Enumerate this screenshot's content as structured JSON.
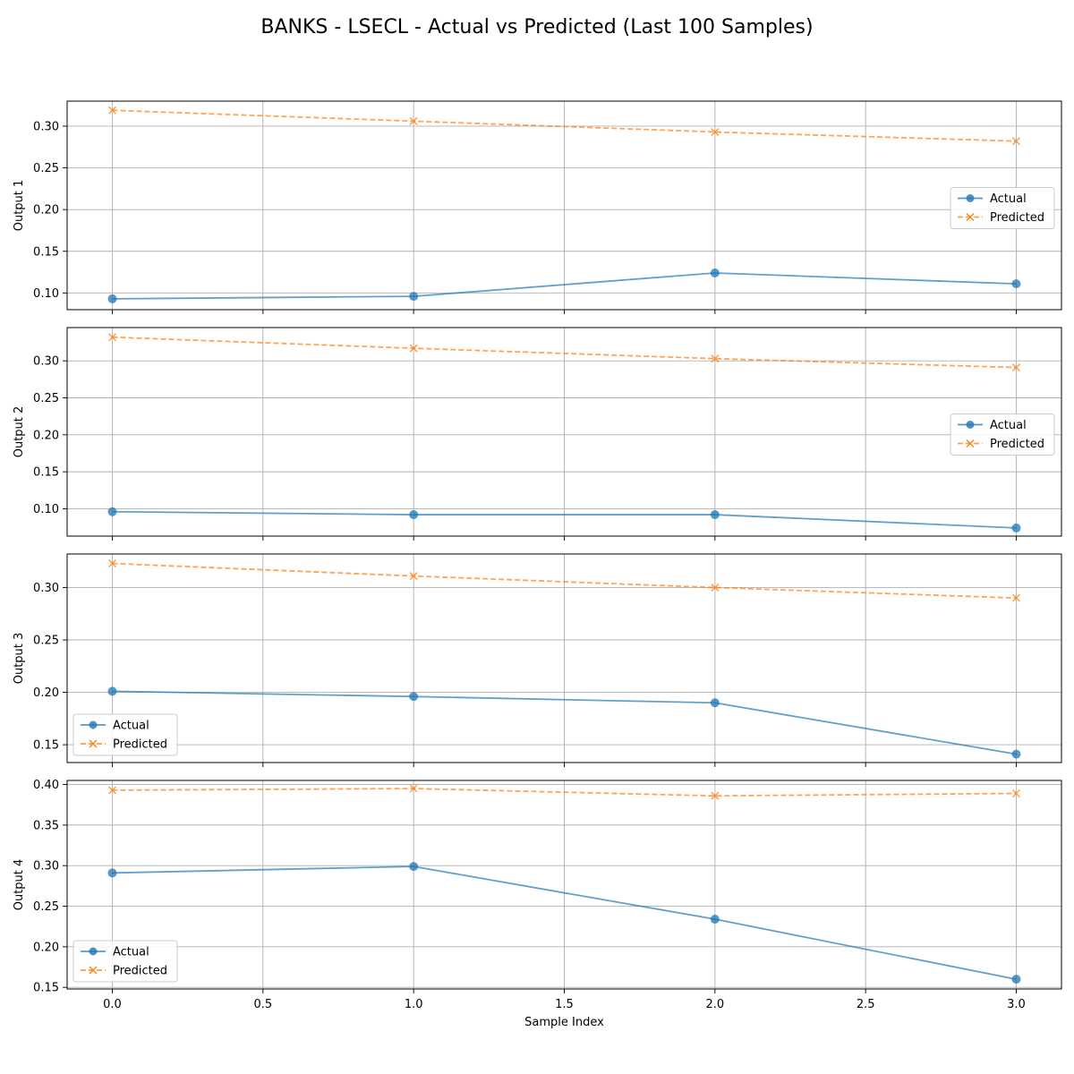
{
  "figure": {
    "title": "BANKS - LSECL - Actual vs Predicted (Last 100 Samples)",
    "xlabel": "Sample Index",
    "colors": {
      "actual": "#1f77b4",
      "predicted": "#ff7f0e",
      "grid": "#b0b0b0"
    }
  },
  "chart_data": [
    {
      "type": "line",
      "ylabel": "Output 1",
      "x": [
        0,
        1,
        2,
        3
      ],
      "xlim": [
        -0.15,
        3.15
      ],
      "xticks": [
        0.0,
        0.5,
        1.0,
        1.5,
        2.0,
        2.5,
        3.0
      ],
      "ylim": [
        0.08,
        0.33
      ],
      "yticks": [
        0.1,
        0.15,
        0.2,
        0.25,
        0.3
      ],
      "grid": true,
      "legend": "center-right",
      "series": [
        {
          "name": "Actual",
          "style": "solid-circle",
          "values": [
            0.093,
            0.096,
            0.124,
            0.111
          ]
        },
        {
          "name": "Predicted",
          "style": "dashed-x",
          "values": [
            0.319,
            0.306,
            0.293,
            0.282
          ]
        }
      ]
    },
    {
      "type": "line",
      "ylabel": "Output 2",
      "x": [
        0,
        1,
        2,
        3
      ],
      "xlim": [
        -0.15,
        3.15
      ],
      "xticks": [
        0.0,
        0.5,
        1.0,
        1.5,
        2.0,
        2.5,
        3.0
      ],
      "ylim": [
        0.063,
        0.345
      ],
      "yticks": [
        0.1,
        0.15,
        0.2,
        0.25,
        0.3
      ],
      "grid": true,
      "legend": "center-right",
      "series": [
        {
          "name": "Actual",
          "style": "solid-circle",
          "values": [
            0.096,
            0.092,
            0.092,
            0.074
          ]
        },
        {
          "name": "Predicted",
          "style": "dashed-x",
          "values": [
            0.332,
            0.317,
            0.303,
            0.291
          ]
        }
      ]
    },
    {
      "type": "line",
      "ylabel": "Output 3",
      "x": [
        0,
        1,
        2,
        3
      ],
      "xlim": [
        -0.15,
        3.15
      ],
      "xticks": [
        0.0,
        0.5,
        1.0,
        1.5,
        2.0,
        2.5,
        3.0
      ],
      "ylim": [
        0.133,
        0.332
      ],
      "yticks": [
        0.15,
        0.2,
        0.25,
        0.3
      ],
      "grid": true,
      "legend": "lower-left",
      "series": [
        {
          "name": "Actual",
          "style": "solid-circle",
          "values": [
            0.201,
            0.196,
            0.19,
            0.141
          ]
        },
        {
          "name": "Predicted",
          "style": "dashed-x",
          "values": [
            0.323,
            0.311,
            0.3,
            0.29
          ]
        }
      ]
    },
    {
      "type": "line",
      "ylabel": "Output 4",
      "x": [
        0,
        1,
        2,
        3
      ],
      "xlim": [
        -0.15,
        3.15
      ],
      "xticks": [
        0.0,
        0.5,
        1.0,
        1.5,
        2.0,
        2.5,
        3.0
      ],
      "ylim": [
        0.148,
        0.405
      ],
      "yticks": [
        0.15,
        0.2,
        0.25,
        0.3,
        0.35,
        0.4
      ],
      "grid": true,
      "legend": "lower-left",
      "series": [
        {
          "name": "Actual",
          "style": "solid-circle",
          "values": [
            0.291,
            0.299,
            0.234,
            0.16
          ]
        },
        {
          "name": "Predicted",
          "style": "dashed-x",
          "values": [
            0.393,
            0.395,
            0.386,
            0.389
          ]
        }
      ]
    }
  ]
}
